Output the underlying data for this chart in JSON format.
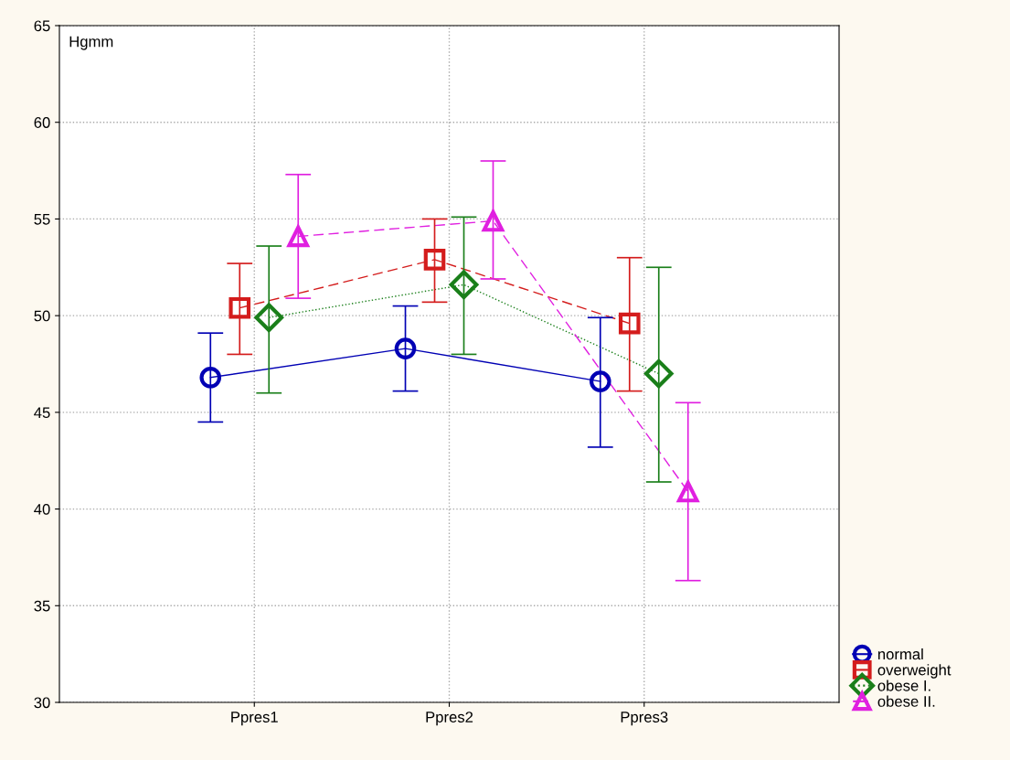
{
  "chart_data": {
    "type": "line",
    "ylabel": "Hgmm",
    "categories": [
      "Ppres1",
      "Ppres2",
      "Ppres3"
    ],
    "series": [
      {
        "name": "normal",
        "color": "#0000b4",
        "marker": "circle",
        "line_style": "solid",
        "values": [
          46.8,
          48.3,
          46.6
        ],
        "errors": [
          [
            44.5,
            49.1
          ],
          [
            46.1,
            50.5
          ],
          [
            43.2,
            49.9
          ]
        ]
      },
      {
        "name": "overweight",
        "color": "#d41c1c",
        "marker": "square",
        "line_style": "dashed",
        "values": [
          50.4,
          52.9,
          49.6
        ],
        "errors": [
          [
            48.0,
            52.7
          ],
          [
            50.7,
            55.0
          ],
          [
            46.1,
            53.0
          ]
        ]
      },
      {
        "name": "obese I.",
        "color": "#1a7f1a",
        "marker": "diamond",
        "line_style": "dotted",
        "values": [
          49.9,
          51.6,
          47.0
        ],
        "errors": [
          [
            46.0,
            53.6
          ],
          [
            48.0,
            55.1
          ],
          [
            41.4,
            52.5
          ]
        ]
      },
      {
        "name": "obese II.",
        "color": "#e020e0",
        "marker": "triangle",
        "line_style": "dashed",
        "values": [
          54.1,
          54.9,
          40.9
        ],
        "errors": [
          [
            50.9,
            57.3
          ],
          [
            51.9,
            58.0
          ],
          [
            36.3,
            45.5
          ]
        ]
      }
    ],
    "ylim": [
      30,
      65
    ],
    "yticks": [
      30,
      35,
      40,
      45,
      50,
      55,
      60,
      65
    ],
    "grid": true,
    "legend": "bottom right"
  }
}
